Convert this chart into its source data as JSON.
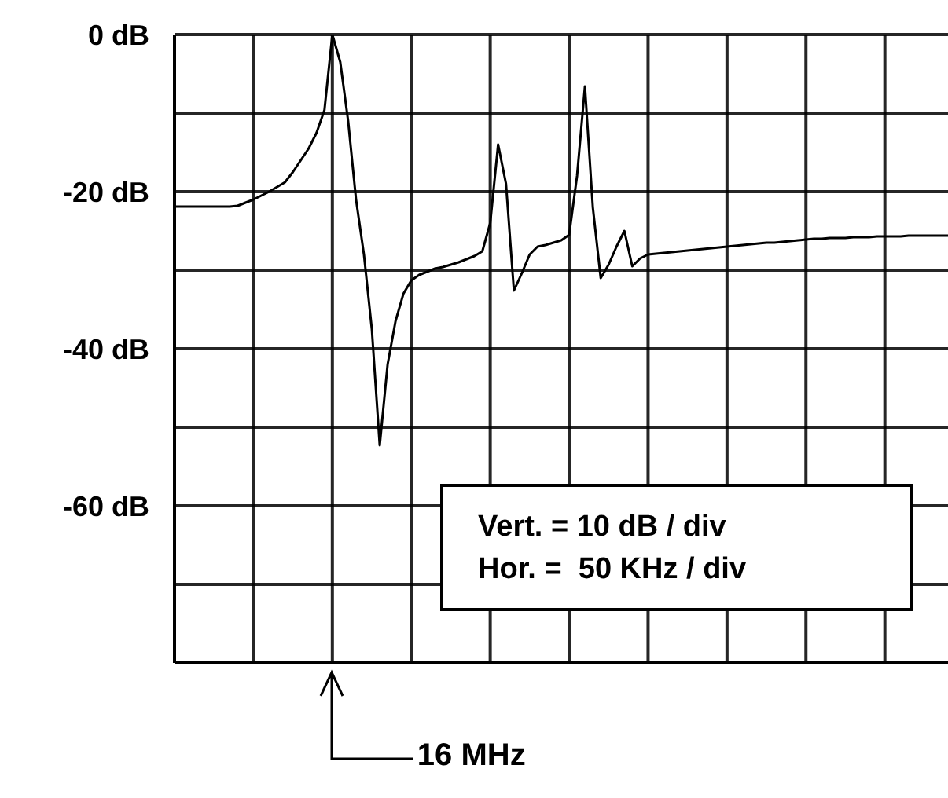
{
  "chart_data": {
    "type": "line",
    "categories": [
      null,
      null,
      null,
      null,
      null,
      null,
      null,
      null,
      null,
      null,
      null,
      null,
      null,
      null,
      null,
      null,
      null,
      null,
      null,
      null,
      null,
      null,
      null,
      null,
      null,
      null,
      null,
      null,
      null,
      null,
      null,
      null,
      null,
      null,
      null,
      null,
      null,
      null,
      null,
      null,
      null,
      null,
      null,
      null,
      null,
      null,
      null,
      null,
      null,
      null,
      null,
      null,
      null,
      null,
      null,
      null,
      null,
      null,
      null,
      null,
      null,
      null,
      null,
      null,
      null,
      null,
      null,
      null,
      null,
      null,
      null,
      null,
      null,
      null,
      null,
      null,
      null,
      null,
      null,
      null,
      null,
      null,
      null,
      null,
      null,
      null,
      null,
      null,
      null,
      null,
      null,
      null,
      null,
      null,
      null,
      null,
      null,
      null,
      null
    ],
    "series": [
      {
        "color": "#000000",
        "values": [
          -21.9,
          -21.9,
          -21.9,
          -21.9,
          -21.9,
          -21.9,
          -21.9,
          -21.9,
          -21.8,
          -21.4,
          -21,
          -20.5,
          -20,
          -19.4,
          -18.8,
          -17.5,
          -16,
          -14.5,
          -12.5,
          -9.6,
          0,
          -3.5,
          -11,
          -21,
          -28,
          -37.5,
          -52.3,
          -42,
          -36.5,
          -33,
          -31.3,
          -30.6,
          -30.2,
          -29.8,
          -29.6,
          -29.3,
          -29,
          -28.6,
          -28.2,
          -27.6,
          -24,
          -14,
          -19,
          -32.6,
          -30.4,
          -28,
          -27,
          -26.8,
          -26.5,
          -26.2,
          -25.5,
          -18,
          -6.6,
          -22,
          -31,
          -29.3,
          -27,
          -25,
          -29.5,
          -28.5,
          -28,
          -27.9,
          -27.8,
          -27.7,
          -27.6,
          -27.5,
          -27.4,
          -27.3,
          -27.2,
          -27.1,
          -27,
          -26.9,
          -26.8,
          -26.7,
          -26.6,
          -26.5,
          -26.5,
          -26.4,
          -26.3,
          -26.2,
          -26.1,
          -26,
          -26,
          -25.9,
          -25.9,
          -25.9,
          -25.8,
          -25.8,
          -25.8,
          -25.7,
          -25.7,
          -25.7,
          -25.7,
          -25.6,
          -25.6,
          -25.6,
          -25.6,
          -25.6,
          -25.6
        ]
      }
    ],
    "ylim": [
      -80,
      0
    ],
    "yticks": [
      {
        "value": 0,
        "label": "0 dB"
      },
      {
        "value": -10,
        "label": null
      },
      {
        "value": -20,
        "label": "-20 dB"
      },
      {
        "value": -30,
        "label": null
      },
      {
        "value": -40,
        "label": "-40 dB"
      },
      {
        "value": -50,
        "label": null
      },
      {
        "value": -60,
        "label": "-60 dB"
      },
      {
        "value": -70,
        "label": null
      },
      {
        "value": -80,
        "label": null
      }
    ],
    "tick_labels": "y",
    "grid": true,
    "marker": "none",
    "line_style": "solid",
    "annotations": [
      "16 MHz",
      "Vert. = 10 dB / div",
      "Hor. =  50 KHz / div"
    ]
  }
}
